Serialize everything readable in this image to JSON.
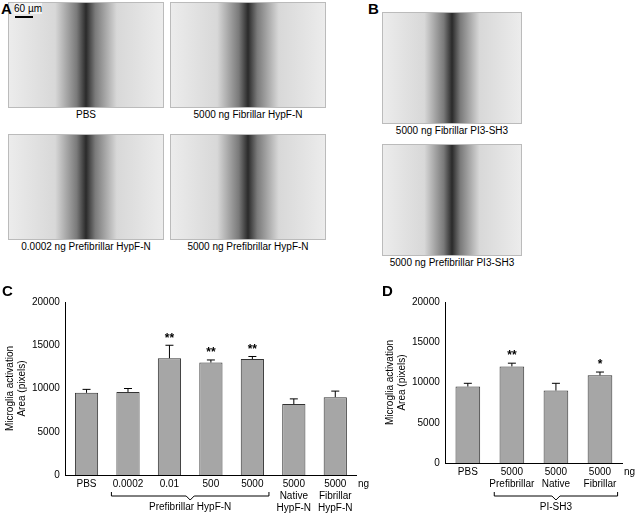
{
  "panels": [
    {
      "letter": "A",
      "images": [
        {
          "caption": "PBS",
          "scale_bar": "60 µm"
        },
        {
          "caption": "5000 ng Fibrillar HypF-N"
        },
        {
          "caption": "0.0002 ng Prefibrillar HypF-N"
        },
        {
          "caption": "5000 ng Prefibrillar HypF-N"
        }
      ]
    },
    {
      "letter": "B",
      "images": [
        {
          "caption": "5000 ng Fibrillar PI3-SH3"
        },
        {
          "caption": "5000 ng Prefibrillar PI3-SH3"
        }
      ]
    }
  ],
  "chart_data": [
    {
      "panel": "C",
      "type": "bar",
      "color": "#a6a6a6",
      "categories": [
        "PBS",
        "0.0002",
        "0.01",
        "500",
        "5000",
        "5000 Native HypF-N",
        "5000 Fibrillar HypF-N"
      ],
      "values": [
        9500,
        9600,
        13500,
        13000,
        13400,
        8200,
        9000
      ],
      "errors": [
        400,
        400,
        1500,
        300,
        300,
        600,
        700
      ],
      "significance": [
        null,
        null,
        "**",
        "**",
        "**",
        null,
        null
      ],
      "group": {
        "label": "Prefibrillar HypF-N",
        "categories": [
          "0.0002",
          "0.01",
          "500",
          "5000"
        ]
      },
      "x_label": "ng",
      "y_label": [
        "Microglia activation",
        "Area (pixels)"
      ],
      "ylim": [
        0,
        20000
      ],
      "yticks": [
        0,
        5000,
        10000,
        15000,
        20000
      ],
      "grid": false
    },
    {
      "panel": "D",
      "type": "bar",
      "color": "#a6a6a6",
      "categories": [
        "PBS",
        "5000 Prefibrillar",
        "5000 Native",
        "5000 Fibrillar"
      ],
      "values": [
        9500,
        12000,
        9000,
        10900
      ],
      "errors": [
        400,
        400,
        900,
        400
      ],
      "significance": [
        null,
        "**",
        null,
        "*"
      ],
      "group": {
        "label": "PI-SH3",
        "categories": [
          "5000 Prefibrillar",
          "5000 Native",
          "5000 Fibrillar"
        ]
      },
      "x_label": "ng",
      "y_label": [
        "Microglia activation",
        "Area (pixels)"
      ],
      "ylim": [
        0,
        20000
      ],
      "yticks": [
        0,
        5000,
        10000,
        15000,
        20000
      ],
      "grid": false
    }
  ]
}
